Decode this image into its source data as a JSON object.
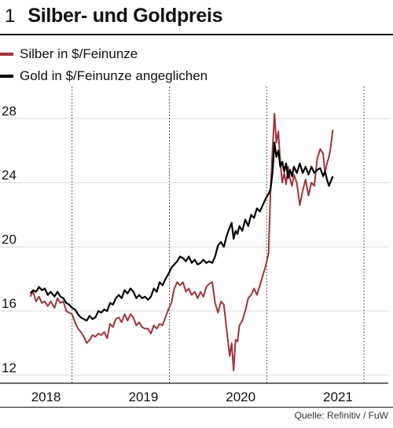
{
  "figure": {
    "number": "1",
    "title": "Silber- und Goldpreis"
  },
  "source": "Quelle: Refinitiv / FuW",
  "colors": {
    "silver": "#a0343a",
    "gold": "#000000",
    "grid": "#d9d9d9"
  },
  "chart_data": {
    "type": "line",
    "title": "Silber- und Goldpreis",
    "xlabel": "",
    "ylabel": "",
    "xlim": [
      2017.55,
      2021.25
    ],
    "ylim": [
      11.5,
      30
    ],
    "yticks": [
      12,
      16,
      20,
      24,
      28
    ],
    "xticks": [
      2018,
      2019,
      2020,
      2021
    ],
    "grid": "horizontal",
    "legend_placement": "top-left",
    "series": [
      {
        "name": "Silber in $/Feinunze",
        "color": "#a0343a",
        "points": [
          [
            2017.57,
            16.9
          ],
          [
            2017.6,
            17.2
          ],
          [
            2017.63,
            16.6
          ],
          [
            2017.66,
            16.9
          ],
          [
            2017.69,
            16.5
          ],
          [
            2017.72,
            16.6
          ],
          [
            2017.75,
            16.3
          ],
          [
            2017.78,
            16.6
          ],
          [
            2017.82,
            16.2
          ],
          [
            2017.85,
            16.8
          ],
          [
            2017.88,
            16.5
          ],
          [
            2017.91,
            16.6
          ],
          [
            2017.94,
            16.0
          ],
          [
            2017.97,
            15.9
          ],
          [
            2018.0,
            15.8
          ],
          [
            2018.03,
            15.3
          ],
          [
            2018.06,
            14.9
          ],
          [
            2018.09,
            14.7
          ],
          [
            2018.12,
            14.4
          ],
          [
            2018.15,
            14.0
          ],
          [
            2018.18,
            14.2
          ],
          [
            2018.21,
            14.5
          ],
          [
            2018.24,
            14.4
          ],
          [
            2018.27,
            14.6
          ],
          [
            2018.3,
            14.5
          ],
          [
            2018.33,
            14.7
          ],
          [
            2018.36,
            14.3
          ],
          [
            2018.39,
            15.2
          ],
          [
            2018.42,
            15.0
          ],
          [
            2018.45,
            15.5
          ],
          [
            2018.48,
            15.6
          ],
          [
            2018.51,
            15.3
          ],
          [
            2018.54,
            15.8
          ],
          [
            2018.57,
            15.4
          ],
          [
            2018.6,
            15.8
          ],
          [
            2018.63,
            15.6
          ],
          [
            2018.66,
            15.1
          ],
          [
            2018.69,
            15.3
          ],
          [
            2018.72,
            15.0
          ],
          [
            2018.75,
            14.9
          ],
          [
            2018.78,
            14.9
          ],
          [
            2018.81,
            14.6
          ],
          [
            2018.84,
            15.1
          ],
          [
            2018.87,
            14.9
          ],
          [
            2018.9,
            15.2
          ],
          [
            2018.93,
            15.1
          ],
          [
            2018.96,
            15.6
          ],
          [
            2018.99,
            16.1
          ],
          [
            2019.02,
            16.5
          ],
          [
            2019.05,
            17.4
          ],
          [
            2019.08,
            17.8
          ],
          [
            2019.11,
            17.6
          ],
          [
            2019.14,
            17.8
          ],
          [
            2019.17,
            17.2
          ],
          [
            2019.2,
            17.4
          ],
          [
            2019.23,
            17.0
          ],
          [
            2019.26,
            17.2
          ],
          [
            2019.29,
            16.8
          ],
          [
            2019.32,
            17.2
          ],
          [
            2019.35,
            16.9
          ],
          [
            2019.38,
            17.5
          ],
          [
            2019.41,
            17.7
          ],
          [
            2019.44,
            17.8
          ],
          [
            2019.47,
            16.5
          ],
          [
            2019.5,
            15.9
          ],
          [
            2019.53,
            16.6
          ],
          [
            2019.56,
            16.4
          ],
          [
            2019.59,
            14.8
          ],
          [
            2019.62,
            13.2
          ],
          [
            2019.64,
            14.0
          ],
          [
            2019.66,
            12.3
          ],
          [
            2019.68,
            14.2
          ],
          [
            2019.7,
            14.1
          ],
          [
            2019.72,
            15.1
          ],
          [
            2019.75,
            15.4
          ],
          [
            2019.78,
            16.0
          ],
          [
            2019.81,
            16.8
          ],
          [
            2019.84,
            17.0
          ],
          [
            2019.87,
            17.4
          ],
          [
            2019.9,
            17.0
          ],
          [
            2019.93,
            17.6
          ],
          [
            2019.96,
            18.2
          ],
          [
            2019.99,
            18.8
          ],
          [
            2020.02,
            19.6
          ],
          [
            2020.04,
            23.5
          ],
          [
            2020.06,
            26.0
          ],
          [
            2020.08,
            28.3
          ],
          [
            2020.1,
            26.5
          ],
          [
            2020.12,
            27.2
          ],
          [
            2020.14,
            25.3
          ],
          [
            2020.16,
            24.0
          ],
          [
            2020.18,
            24.6
          ],
          [
            2020.2,
            23.9
          ],
          [
            2020.22,
            25.0
          ],
          [
            2020.24,
            24.2
          ],
          [
            2020.26,
            23.8
          ],
          [
            2020.28,
            24.5
          ],
          [
            2020.31,
            24.0
          ],
          [
            2020.34,
            22.6
          ],
          [
            2020.37,
            23.5
          ],
          [
            2020.4,
            24.2
          ],
          [
            2020.43,
            23.2
          ],
          [
            2020.46,
            24.0
          ],
          [
            2020.49,
            23.8
          ],
          [
            2020.52,
            25.5
          ],
          [
            2020.55,
            26.1
          ],
          [
            2020.58,
            25.8
          ],
          [
            2020.6,
            24.6
          ],
          [
            2020.62,
            25.2
          ],
          [
            2020.64,
            25.6
          ],
          [
            2020.66,
            26.3
          ],
          [
            2020.68,
            27.3
          ]
        ]
      },
      {
        "name": "Gold in $/Feinunze angeglichen",
        "color": "#000000",
        "points": [
          [
            2017.57,
            17.1
          ],
          [
            2017.6,
            17.3
          ],
          [
            2017.63,
            17.2
          ],
          [
            2017.66,
            17.5
          ],
          [
            2017.69,
            17.3
          ],
          [
            2017.72,
            17.4
          ],
          [
            2017.75,
            17.0
          ],
          [
            2017.78,
            17.2
          ],
          [
            2017.82,
            16.9
          ],
          [
            2017.85,
            17.2
          ],
          [
            2017.88,
            16.9
          ],
          [
            2017.91,
            16.8
          ],
          [
            2017.94,
            16.5
          ],
          [
            2017.97,
            16.4
          ],
          [
            2018.0,
            16.2
          ],
          [
            2018.03,
            16.1
          ],
          [
            2018.06,
            15.8
          ],
          [
            2018.09,
            15.6
          ],
          [
            2018.12,
            15.5
          ],
          [
            2018.15,
            15.4
          ],
          [
            2018.18,
            15.7
          ],
          [
            2018.21,
            15.5
          ],
          [
            2018.24,
            15.6
          ],
          [
            2018.27,
            16.0
          ],
          [
            2018.3,
            15.9
          ],
          [
            2018.33,
            16.1
          ],
          [
            2018.36,
            16.0
          ],
          [
            2018.39,
            16.5
          ],
          [
            2018.42,
            16.4
          ],
          [
            2018.45,
            16.8
          ],
          [
            2018.48,
            17.0
          ],
          [
            2018.51,
            16.8
          ],
          [
            2018.54,
            17.3
          ],
          [
            2018.57,
            17.1
          ],
          [
            2018.6,
            17.4
          ],
          [
            2018.63,
            17.2
          ],
          [
            2018.66,
            16.8
          ],
          [
            2018.69,
            17.0
          ],
          [
            2018.72,
            16.8
          ],
          [
            2018.75,
            16.9
          ],
          [
            2018.78,
            16.7
          ],
          [
            2018.81,
            16.9
          ],
          [
            2018.84,
            17.4
          ],
          [
            2018.87,
            17.2
          ],
          [
            2018.9,
            17.8
          ],
          [
            2018.93,
            17.6
          ],
          [
            2018.96,
            18.0
          ],
          [
            2018.99,
            18.3
          ],
          [
            2019.02,
            18.7
          ],
          [
            2019.05,
            18.9
          ],
          [
            2019.08,
            19.1
          ],
          [
            2019.11,
            19.4
          ],
          [
            2019.14,
            19.3
          ],
          [
            2019.17,
            19.1
          ],
          [
            2019.2,
            19.4
          ],
          [
            2019.23,
            19.0
          ],
          [
            2019.26,
            19.2
          ],
          [
            2019.29,
            18.9
          ],
          [
            2019.32,
            19.0
          ],
          [
            2019.35,
            19.2
          ],
          [
            2019.38,
            19.0
          ],
          [
            2019.41,
            19.1
          ],
          [
            2019.44,
            19.0
          ],
          [
            2019.47,
            19.4
          ],
          [
            2019.5,
            20.1
          ],
          [
            2019.53,
            20.3
          ],
          [
            2019.56,
            20.0
          ],
          [
            2019.59,
            20.7
          ],
          [
            2019.62,
            21.2
          ],
          [
            2019.64,
            21.5
          ],
          [
            2019.66,
            20.5
          ],
          [
            2019.68,
            21.0
          ],
          [
            2019.7,
            20.8
          ],
          [
            2019.72,
            21.3
          ],
          [
            2019.75,
            21.0
          ],
          [
            2019.78,
            21.7
          ],
          [
            2019.81,
            21.3
          ],
          [
            2019.84,
            22.0
          ],
          [
            2019.87,
            21.8
          ],
          [
            2019.9,
            22.4
          ],
          [
            2019.93,
            22.2
          ],
          [
            2019.96,
            22.6
          ],
          [
            2019.99,
            23.0
          ],
          [
            2020.02,
            23.3
          ],
          [
            2020.04,
            23.6
          ],
          [
            2020.06,
            24.6
          ],
          [
            2020.08,
            26.5
          ],
          [
            2020.1,
            25.6
          ],
          [
            2020.12,
            26.0
          ],
          [
            2020.14,
            25.0
          ],
          [
            2020.16,
            25.3
          ],
          [
            2020.18,
            24.7
          ],
          [
            2020.2,
            25.2
          ],
          [
            2020.22,
            24.3
          ],
          [
            2020.24,
            24.8
          ],
          [
            2020.26,
            24.4
          ],
          [
            2020.28,
            25.0
          ],
          [
            2020.31,
            24.6
          ],
          [
            2020.34,
            25.2
          ],
          [
            2020.37,
            24.6
          ],
          [
            2020.4,
            25.0
          ],
          [
            2020.43,
            24.5
          ],
          [
            2020.46,
            25.0
          ],
          [
            2020.49,
            24.6
          ],
          [
            2020.52,
            24.8
          ],
          [
            2020.55,
            24.9
          ],
          [
            2020.58,
            24.4
          ],
          [
            2020.6,
            24.7
          ],
          [
            2020.62,
            24.2
          ],
          [
            2020.64,
            23.8
          ],
          [
            2020.66,
            24.1
          ],
          [
            2020.68,
            24.4
          ]
        ]
      }
    ]
  }
}
